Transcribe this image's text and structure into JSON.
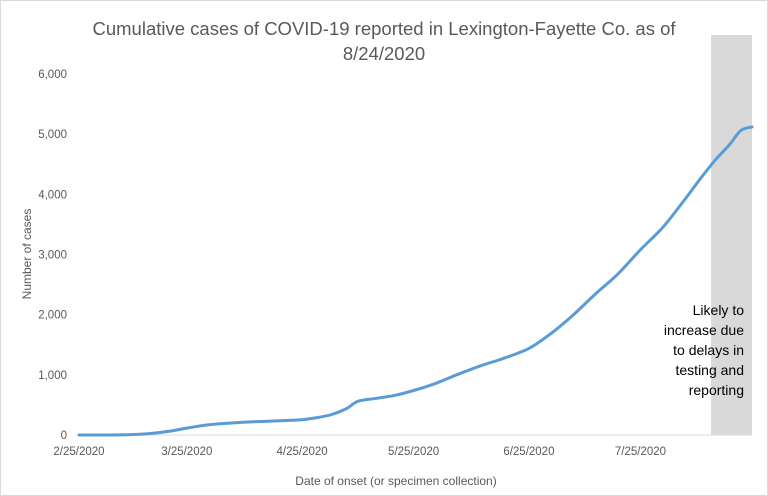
{
  "chart_data": {
    "type": "line",
    "title_lines": [
      "Cumulative cases of COVID-19 reported in Lexington-Fayette Co.  as of",
      "8/24/2020"
    ],
    "xlabel": "Date of onset (or specimen collection)",
    "ylabel": "Number of cases",
    "x_range": [
      "2/25/2020",
      "8/24/2020"
    ],
    "ylim": [
      0,
      6000
    ],
    "x_ticks": [
      "2/25/2020",
      "3/25/2020",
      "4/25/2020",
      "5/25/2020",
      "6/25/2020",
      "7/25/2020"
    ],
    "y_ticks": [
      {
        "value": 0,
        "label": "0"
      },
      {
        "value": 1000,
        "label": "1,000"
      },
      {
        "value": 2000,
        "label": "2,000"
      },
      {
        "value": 3000,
        "label": "3,000"
      },
      {
        "value": 4000,
        "label": "4,000"
      },
      {
        "value": 5000,
        "label": "5,000"
      },
      {
        "value": 6000,
        "label": "6,000"
      }
    ],
    "gridlines": false,
    "legend": "none",
    "series": [
      {
        "color": "#5b9bd5",
        "points": [
          [
            "2/25/2020",
            0
          ],
          [
            "3/2/2020",
            0
          ],
          [
            "3/8/2020",
            3
          ],
          [
            "3/14/2020",
            18
          ],
          [
            "3/20/2020",
            60
          ],
          [
            "3/25/2020",
            115
          ],
          [
            "3/31/2020",
            170
          ],
          [
            "4/6/2020",
            200
          ],
          [
            "4/12/2020",
            220
          ],
          [
            "4/18/2020",
            235
          ],
          [
            "4/25/2020",
            255
          ],
          [
            "4/29/2020",
            290
          ],
          [
            "5/3/2020",
            340
          ],
          [
            "5/7/2020",
            440
          ],
          [
            "5/10/2020",
            560
          ],
          [
            "5/15/2020",
            610
          ],
          [
            "5/20/2020",
            660
          ],
          [
            "5/25/2020",
            740
          ],
          [
            "5/31/2020",
            860
          ],
          [
            "6/6/2020",
            1010
          ],
          [
            "6/12/2020",
            1150
          ],
          [
            "6/18/2020",
            1270
          ],
          [
            "6/25/2020",
            1440
          ],
          [
            "7/1/2020",
            1690
          ],
          [
            "7/7/2020",
            2000
          ],
          [
            "7/13/2020",
            2350
          ],
          [
            "7/19/2020",
            2680
          ],
          [
            "7/25/2020",
            3080
          ],
          [
            "7/31/2020",
            3450
          ],
          [
            "8/6/2020",
            3920
          ],
          [
            "8/10/2020",
            4250
          ],
          [
            "8/14/2020",
            4560
          ],
          [
            "8/18/2020",
            4830
          ],
          [
            "8/21/2020",
            5060
          ],
          [
            "8/24/2020",
            5120
          ]
        ]
      }
    ],
    "shaded_region": {
      "x_start": "8/13/2020",
      "x_end": "8/24/2020",
      "color": "#d9d9d9",
      "label_lines": [
        "Likely to",
        "increase due",
        "to delays in",
        "testing and",
        "reporting"
      ]
    },
    "axis_color": "#d9d9d9",
    "text_color": "#595959"
  }
}
